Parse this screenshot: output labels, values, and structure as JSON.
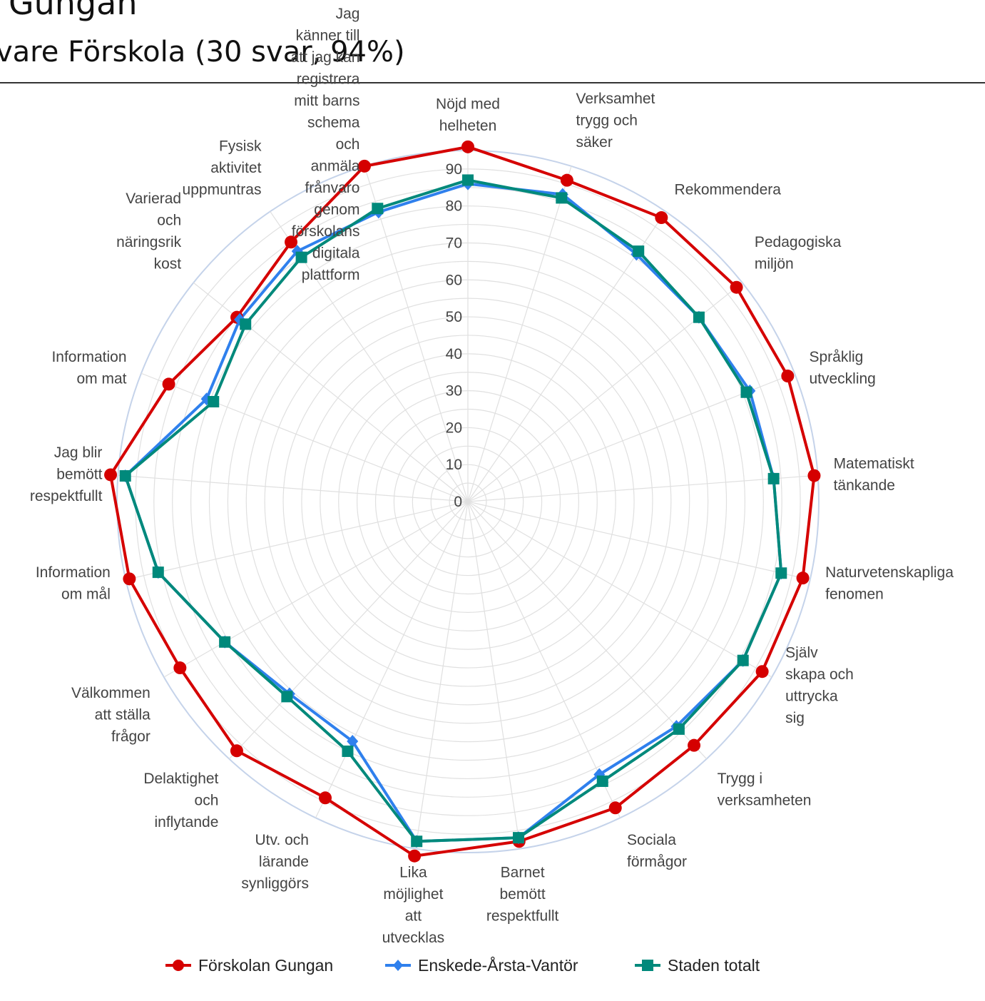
{
  "header": {
    "title": "Gungan",
    "subtitle": "vare Förskola (30 svar, 94%)"
  },
  "colors": {
    "forskolan": "#d50000",
    "enskede": "#2f80ed",
    "staden": "#00897b",
    "grid": "#e0e0e0",
    "outer_ring": "#c5d3ea"
  },
  "chart_data": {
    "type": "radar",
    "r_range": [
      0,
      95
    ],
    "r_ticks": [
      0,
      10,
      20,
      30,
      40,
      50,
      60,
      70,
      80,
      90
    ],
    "grid": true,
    "legend_position": "bottom",
    "categories": [
      [
        "Nöjd med",
        "helheten"
      ],
      [
        "Verksamhet",
        "trygg och",
        "säker"
      ],
      [
        "Rekommendera"
      ],
      [
        "Pedagogiska",
        "miljön"
      ],
      [
        "Språklig",
        "utveckling"
      ],
      [
        "Matematiskt",
        "tänkande"
      ],
      [
        "Naturvetenskapliga",
        "fenomen"
      ],
      [
        "Själv",
        "skapa och",
        "uttrycka",
        "sig"
      ],
      [
        "Trygg i",
        "verksamheten"
      ],
      [
        "Sociala",
        "förmågor"
      ],
      [
        "Barnet",
        "bemött",
        "respektfullt"
      ],
      [
        "Lika",
        "möjlighet",
        "att",
        "utvecklas"
      ],
      [
        "Utv. och",
        "lärande",
        "synliggörs"
      ],
      [
        "Delaktighet",
        "och",
        "inflytande"
      ],
      [
        "Välkommen",
        "att ställa",
        "frågor"
      ],
      [
        "Information",
        "om mål"
      ],
      [
        "Jag blir",
        "bemött",
        "respektfullt"
      ],
      [
        "Information",
        "om mat"
      ],
      [
        "Varierad",
        "och",
        "näringsrik",
        "kost"
      ],
      [
        "Fysisk",
        "aktivitet",
        "uppmuntras"
      ],
      [
        "Jag",
        "känner till",
        "att jag kan",
        "registrera",
        "mitt barns",
        "schema",
        "och",
        "anmäla",
        "frånvaro",
        "genom",
        "förskolans",
        "digitala",
        "plattform"
      ]
    ],
    "series": [
      {
        "name": "Förskolan Gungan",
        "marker": "circle",
        "color": "#d50000",
        "values": [
          96,
          91,
          93,
          93,
          93,
          94,
          93,
          92,
          90,
          92,
          93,
          97,
          89,
          92,
          90,
          94,
          97,
          87,
          80,
          85,
          95
        ]
      },
      {
        "name": "Enskede-Årsta-Vantör",
        "marker": "diamond",
        "color": "#2f80ed",
        "values": [
          86,
          87,
          81,
          80,
          82,
          83,
          87,
          86,
          83,
          82,
          92,
          93,
          72,
          71,
          76,
          86,
          93,
          76,
          79,
          82,
          82
        ]
      },
      {
        "name": "Staden totalt",
        "marker": "square",
        "color": "#00897b",
        "values": [
          87,
          86,
          82,
          80,
          81,
          83,
          87,
          86,
          84,
          84,
          92,
          93,
          75,
          72,
          76,
          86,
          93,
          74,
          77,
          80,
          83
        ]
      }
    ]
  }
}
